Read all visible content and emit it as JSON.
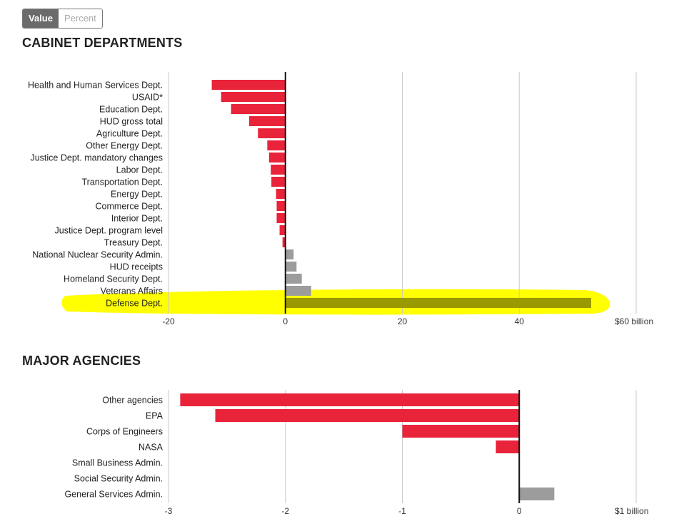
{
  "toggle": {
    "value_label": "Value",
    "percent_label": "Percent"
  },
  "colors": {
    "negative": "#e8233a",
    "positive": "#9c9c9c",
    "highlight": "#ffff00",
    "highlight_bar": "#999900"
  },
  "chart_data": [
    {
      "type": "bar",
      "orientation": "horizontal",
      "title": "CABINET DEPARTMENTS",
      "xlim": [
        -20,
        60
      ],
      "ticks": [
        -20,
        0,
        20,
        40,
        60
      ],
      "tick_labels": [
        "-20",
        "0",
        "20",
        "40",
        "$60 billion"
      ],
      "categories": [
        "Health and Human Services Dept.",
        "USAID*",
        "Education Dept.",
        "HUD gross total",
        "Agriculture Dept.",
        "Other Energy Dept.",
        "Justice Dept. mandatory changes",
        "Labor Dept.",
        "Transportation Dept.",
        "Energy Dept.",
        "Commerce Dept.",
        "Interior Dept.",
        "Justice Dept. program level",
        "Treasury Dept.",
        "National Nuclear Security Admin.",
        "HUD receipts",
        "Homeland Security Dept.",
        "Veterans Affairs",
        "Defense Dept."
      ],
      "values": [
        -12.6,
        -11.0,
        -9.3,
        -6.2,
        -4.7,
        -3.1,
        -2.8,
        -2.5,
        -2.4,
        -1.6,
        -1.5,
        -1.5,
        -1.0,
        -0.5,
        1.4,
        1.9,
        2.8,
        4.4,
        52.3
      ],
      "highlighted": "Defense Dept."
    },
    {
      "type": "bar",
      "orientation": "horizontal",
      "title": "MAJOR AGENCIES",
      "xlim": [
        -3,
        1
      ],
      "ticks": [
        -3,
        -2,
        -1,
        0,
        1
      ],
      "tick_labels": [
        "-3",
        "-2",
        "-1",
        "0",
        "$1 billion"
      ],
      "categories": [
        "Other agencies",
        "EPA",
        "Corps of Engineers",
        "NASA",
        "Small Business Admin.",
        "Social Security Admin.",
        "General Services Admin."
      ],
      "values": [
        -2.9,
        -2.6,
        -1.0,
        -0.2,
        0,
        0,
        0.3
      ]
    }
  ]
}
